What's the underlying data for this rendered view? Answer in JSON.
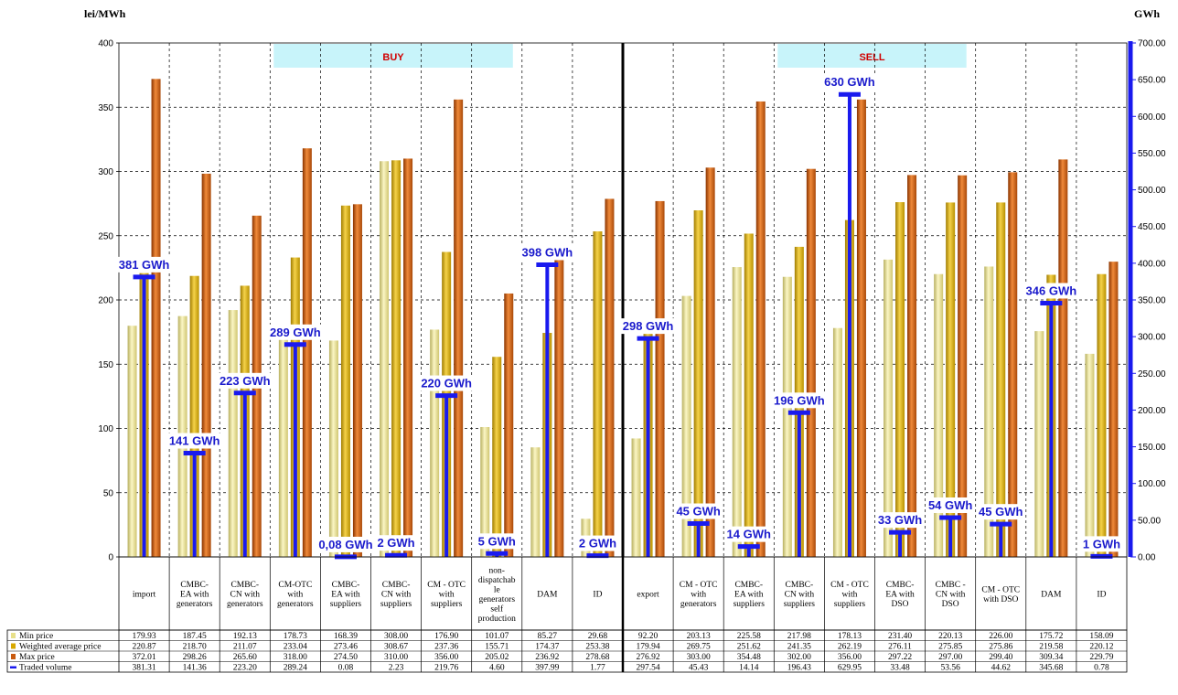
{
  "left_axis_title": "lei/MWh",
  "right_axis_title": "GWh",
  "chart_data": {
    "type": "bar",
    "ylim": [
      0,
      400
    ],
    "yticks": [
      0,
      50,
      100,
      150,
      200,
      250,
      300,
      350,
      400
    ],
    "y2lim": [
      0,
      700
    ],
    "y2ticks": [
      "0.00",
      "50.00",
      "100.00",
      "150.00",
      "200.00",
      "250.00",
      "300.00",
      "350.00",
      "400.00",
      "450.00",
      "500.00",
      "550.00",
      "600.00",
      "650.00",
      "700.00"
    ],
    "grid": true,
    "legend_placement": "bottom-left table",
    "groups": [
      {
        "label": "BUY",
        "from": 3,
        "to": 7
      },
      {
        "label": "SELL",
        "from": 13,
        "to": 16
      }
    ],
    "categories": [
      [
        "import"
      ],
      [
        "CMBC-",
        "EA with",
        "generators"
      ],
      [
        "CMBC-",
        "CN with",
        "generators"
      ],
      [
        "CM-OTC",
        "with",
        "generators"
      ],
      [
        "CMBC-",
        "EA with",
        "suppliers"
      ],
      [
        "CMBC-",
        "CN with",
        "suppliers"
      ],
      [
        "CM - OTC",
        "with",
        "suppliers"
      ],
      [
        "non-",
        "dispatchab",
        "le",
        "generators",
        "self",
        "production"
      ],
      [
        "DAM"
      ],
      [
        "ID"
      ],
      [
        "export"
      ],
      [
        "CM - OTC",
        "with",
        "generators"
      ],
      [
        "CMBC-",
        "EA with",
        "suppliers"
      ],
      [
        "CMBC-",
        "CN with",
        "suppliers"
      ],
      [
        "CM - OTC",
        "with",
        "suppliers"
      ],
      [
        "CMBC-",
        "EA with",
        "DSO"
      ],
      [
        "CMBC -",
        "CN with",
        "DSO"
      ],
      [
        "CM - OTC",
        "with DSO"
      ],
      [
        "DAM"
      ],
      [
        "ID"
      ]
    ],
    "series": [
      {
        "name": "Min price",
        "color": "#e8e08a",
        "values": [
          179.93,
          187.45,
          192.13,
          178.73,
          168.39,
          308.0,
          176.9,
          101.07,
          85.27,
          29.68,
          92.2,
          203.13,
          225.58,
          217.98,
          178.13,
          231.4,
          220.13,
          226.0,
          175.72,
          158.09
        ],
        "cells": [
          "179.93",
          "187.45",
          "192.13",
          "178.73",
          "168.39",
          "308.00",
          "176.90",
          "101.07",
          "85.27",
          "29.68",
          "92.20",
          "203.13",
          "225.58",
          "217.98",
          "178.13",
          "231.40",
          "220.13",
          "226.00",
          "175.72",
          "158.09"
        ]
      },
      {
        "name": "Weighted average price",
        "color": "#d8a800",
        "values": [
          220.87,
          218.7,
          211.07,
          233.04,
          273.46,
          308.67,
          237.36,
          155.71,
          174.37,
          253.38,
          179.94,
          269.75,
          251.62,
          241.35,
          262.19,
          276.11,
          275.85,
          275.86,
          219.58,
          220.12
        ],
        "cells": [
          "220.87",
          "218.70",
          "211.07",
          "233.04",
          "273.46",
          "308.67",
          "237.36",
          "155.71",
          "174.37",
          "253.38",
          "179.94",
          "269.75",
          "251.62",
          "241.35",
          "262.19",
          "276.11",
          "275.85",
          "275.86",
          "219.58",
          "220.12"
        ]
      },
      {
        "name": "Max price",
        "color": "#c85a10",
        "values": [
          372.01,
          298.26,
          265.6,
          318.0,
          274.5,
          310.0,
          356.0,
          205.02,
          236.92,
          278.68,
          276.92,
          303.0,
          354.48,
          302.0,
          356.0,
          297.22,
          297.0,
          299.4,
          309.34,
          229.79
        ],
        "cells": [
          "372.01",
          "298.26",
          "265.60",
          "318.00",
          "274.50",
          "310.00",
          "356.00",
          "205.02",
          "236.92",
          "278.68",
          "276.92",
          "303.00",
          "354.48",
          "302.00",
          "356.00",
          "297.22",
          "297.00",
          "299.40",
          "309.34",
          "229.79"
        ]
      },
      {
        "name": "Traded volume",
        "color": "#1a1aee",
        "axis": "right",
        "values": [
          381.31,
          141.36,
          223.2,
          289.24,
          0.08,
          2.23,
          219.76,
          4.6,
          397.99,
          1.77,
          297.54,
          45.43,
          14.14,
          196.43,
          629.95,
          33.48,
          53.56,
          44.62,
          345.68,
          0.78
        ],
        "cells": [
          "381.31",
          "141.36",
          "223.20",
          "289.24",
          "0.08",
          "2.23",
          "219.76",
          "4.60",
          "397.99",
          "1.77",
          "297.54",
          "45.43",
          "14.14",
          "196.43",
          "629.95",
          "33.48",
          "53.56",
          "44.62",
          "345.68",
          "0.78"
        ],
        "labels": [
          "381 GWh",
          "141 GWh",
          "223 GWh",
          "289 GWh",
          "0,08 GWh",
          "2 GWh",
          "220 GWh",
          "5 GWh",
          "398 GWh",
          "2 GWh",
          "298 GWh",
          "45 GWh",
          "14 GWh",
          "196 GWh",
          "630 GWh",
          "33 GWh",
          "54 GWh",
          "45 GWh",
          "346 GWh",
          "1 GWh"
        ]
      }
    ]
  }
}
